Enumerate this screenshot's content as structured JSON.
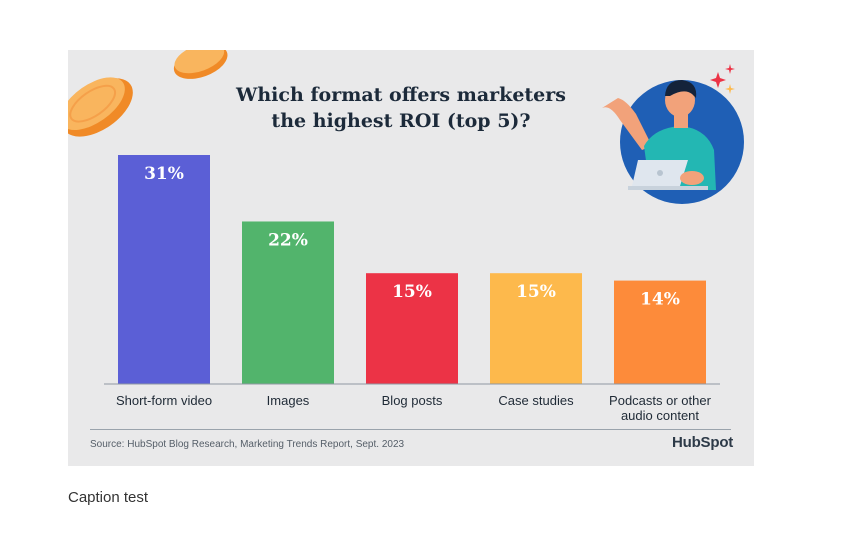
{
  "chart_data": {
    "type": "bar",
    "title": "Which format offers marketers the highest ROI (top 5)?",
    "categories": [
      "Short-form video",
      "Images",
      "Blog posts",
      "Case studies",
      "Podcasts or other audio content"
    ],
    "values": [
      31,
      22,
      15,
      15,
      14
    ],
    "value_labels": [
      "31%",
      "22%",
      "15%",
      "15%",
      "14%"
    ],
    "colors": [
      "#5b5fd6",
      "#52b46c",
      "#ec3346",
      "#fdb94c",
      "#fd8b3a"
    ],
    "value_label_colors": [
      "#ffffff",
      "#ffffff",
      "#ffffff",
      "#ffffff",
      "#ffffff"
    ],
    "ylim": [
      0,
      31
    ],
    "grid": false,
    "legend": "none"
  },
  "footer": {
    "source": "Source: HubSpot Blog Research, Marketing Trends Report, Sept. 2023",
    "logo": "HubSpot"
  },
  "caption": "Caption test",
  "icons": {
    "illustration": "person-with-laptop-illustration",
    "sparkle": "sparkle-icon",
    "coins": "coin-decoration"
  }
}
